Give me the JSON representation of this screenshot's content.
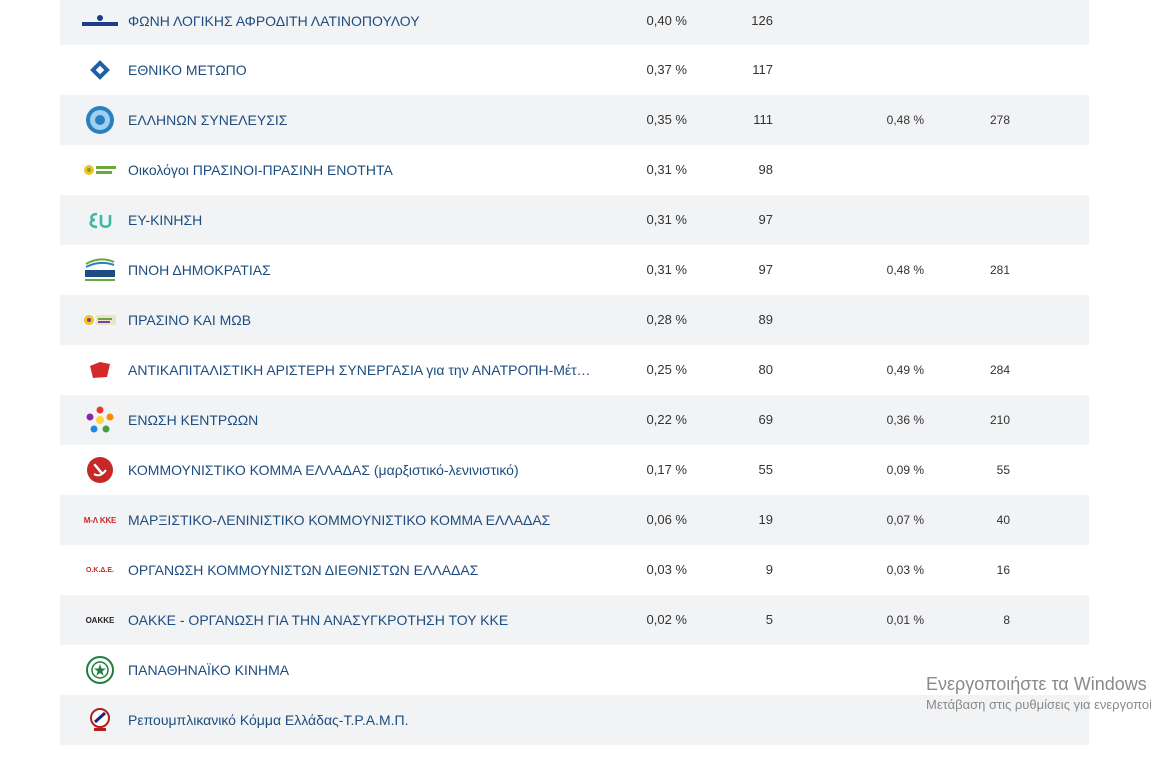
{
  "rows": [
    {
      "name": "ΦΩΝΗ ΛΟΓΙΚΗΣ ΑΦΡΟΔΙΤΗ ΛΑΤΙΝΟΠΟΥΛΟΥ",
      "pct": "0,40 %",
      "votes": "126",
      "pct2": "",
      "votes2": "",
      "logo": "foni-logikis-logo",
      "shade": true
    },
    {
      "name": "ΕΘΝΙΚΟ ΜΕΤΩΠΟ",
      "pct": "0,37 %",
      "votes": "117",
      "pct2": "",
      "votes2": "",
      "logo": "ethniko-metopo-logo",
      "shade": false
    },
    {
      "name": "ΕΛΛΗΝΩΝ ΣΥΝΕΛΕΥΣΙΣ",
      "pct": "0,35 %",
      "votes": "111",
      "pct2": "0,48 %",
      "votes2": "278",
      "logo": "ellinon-syneleysis-logo",
      "shade": true
    },
    {
      "name": "Οικολόγοι ΠΡΑΣΙΝΟΙ-ΠΡΑΣΙΝΗ ΕΝΟΤΗΤΑ",
      "pct": "0,31 %",
      "votes": "98",
      "pct2": "",
      "votes2": "",
      "logo": "oikologoi-prasinoi-logo",
      "shade": false
    },
    {
      "name": "ΕΥ-ΚΙΝΗΣΗ",
      "pct": "0,31 %",
      "votes": "97",
      "pct2": "",
      "votes2": "",
      "logo": "ey-kinisi-logo",
      "shade": true
    },
    {
      "name": "ΠΝΟΗ ΔΗΜΟΚΡΑΤΙΑΣ",
      "pct": "0,31 %",
      "votes": "97",
      "pct2": "0,48 %",
      "votes2": "281",
      "logo": "pnoi-dimokratias-logo",
      "shade": false
    },
    {
      "name": "ΠΡΑΣΙΝΟ ΚΑΙ ΜΩΒ",
      "pct": "0,28 %",
      "votes": "89",
      "pct2": "",
      "votes2": "",
      "logo": "prasino-kai-mov-logo",
      "shade": true
    },
    {
      "name": "ΑΝΤΙΚΑΠΙΤΑΛΙΣΤΙΚΗ ΑΡΙΣΤΕΡΗ ΣΥΝΕΡΓΑΣΙΑ για την ΑΝΑΤΡΟΠΗ-Μέτωπο",
      "pct": "0,25 %",
      "votes": "80",
      "pct2": "0,49 %",
      "votes2": "284",
      "logo": "antarsya-logo",
      "shade": false
    },
    {
      "name": "ΕΝΩΣΗ ΚΕΝΤΡΩΩΝ",
      "pct": "0,22 %",
      "votes": "69",
      "pct2": "0,36 %",
      "votes2": "210",
      "logo": "enosi-kentroon-logo",
      "shade": true
    },
    {
      "name": "ΚΟΜΜΟΥΝΙΣΤΙΚΟ ΚΟΜΜΑ ΕΛΛΑΔΑΣ (μαρξιστικό-λενινιστικό)",
      "pct": "0,17 %",
      "votes": "55",
      "pct2": "0,09 %",
      "votes2": "55",
      "logo": "kke-ml-logo",
      "shade": false
    },
    {
      "name": "ΜΑΡΞΙΣΤΙΚΟ-ΛΕΝΙΝΙΣΤΙΚΟ ΚΟΜΜΟΥΝΙΣΤΙΚΟ ΚΟΜΜΑ ΕΛΛΑΔΑΣ",
      "pct": "0,06 %",
      "votes": "19",
      "pct2": "0,07 %",
      "votes2": "40",
      "logo": "ml-kke-logo",
      "shade": true,
      "logo_text": "Μ-Λ ΚΚΕ"
    },
    {
      "name": "ΟΡΓΑΝΩΣΗ ΚΟΜΜΟΥΝΙΣΤΩΝ ΔΙΕΘΝΙΣΤΩΝ ΕΛΛΑΔΑΣ",
      "pct": "0,03 %",
      "votes": "9",
      "pct2": "0,03 %",
      "votes2": "16",
      "logo": "okde-logo",
      "shade": false,
      "logo_text": "Ο.Κ.Δ.Ε."
    },
    {
      "name": "ΟΑΚΚΕ - ΟΡΓΑΝΩΣΗ ΓΙΑ ΤΗΝ ΑΝΑΣΥΓΚΡΟΤΗΣΗ ΤΟΥ ΚΚΕ",
      "pct": "0,02 %",
      "votes": "5",
      "pct2": "0,01 %",
      "votes2": "8",
      "logo": "oakke-logo",
      "shade": true,
      "logo_text": "ΟΑΚΚΕ"
    },
    {
      "name": "ΠΑΝΑΘΗΝΑΪΚΟ ΚΙΝΗΜΑ",
      "pct": "",
      "votes": "",
      "pct2": "",
      "votes2": "",
      "logo": "panathinaiko-kinima-logo",
      "shade": false
    },
    {
      "name": "Ρεπουμπλικανικό Κόμμα Ελλάδας-Τ.Ρ.Α.Μ.Π.",
      "pct": "",
      "votes": "",
      "pct2": "",
      "votes2": "",
      "logo": "trump-party-logo",
      "shade": true
    }
  ],
  "watermark": {
    "line1": "Ενεργοποιήστε τα Windows",
    "line2": "Μετάβαση στις ρυθμίσεις για ενεργοποίηση των Windows."
  },
  "colors": {
    "link": "#1d4d80",
    "row_shade": "#f2f3f5",
    "text": "#333333"
  }
}
